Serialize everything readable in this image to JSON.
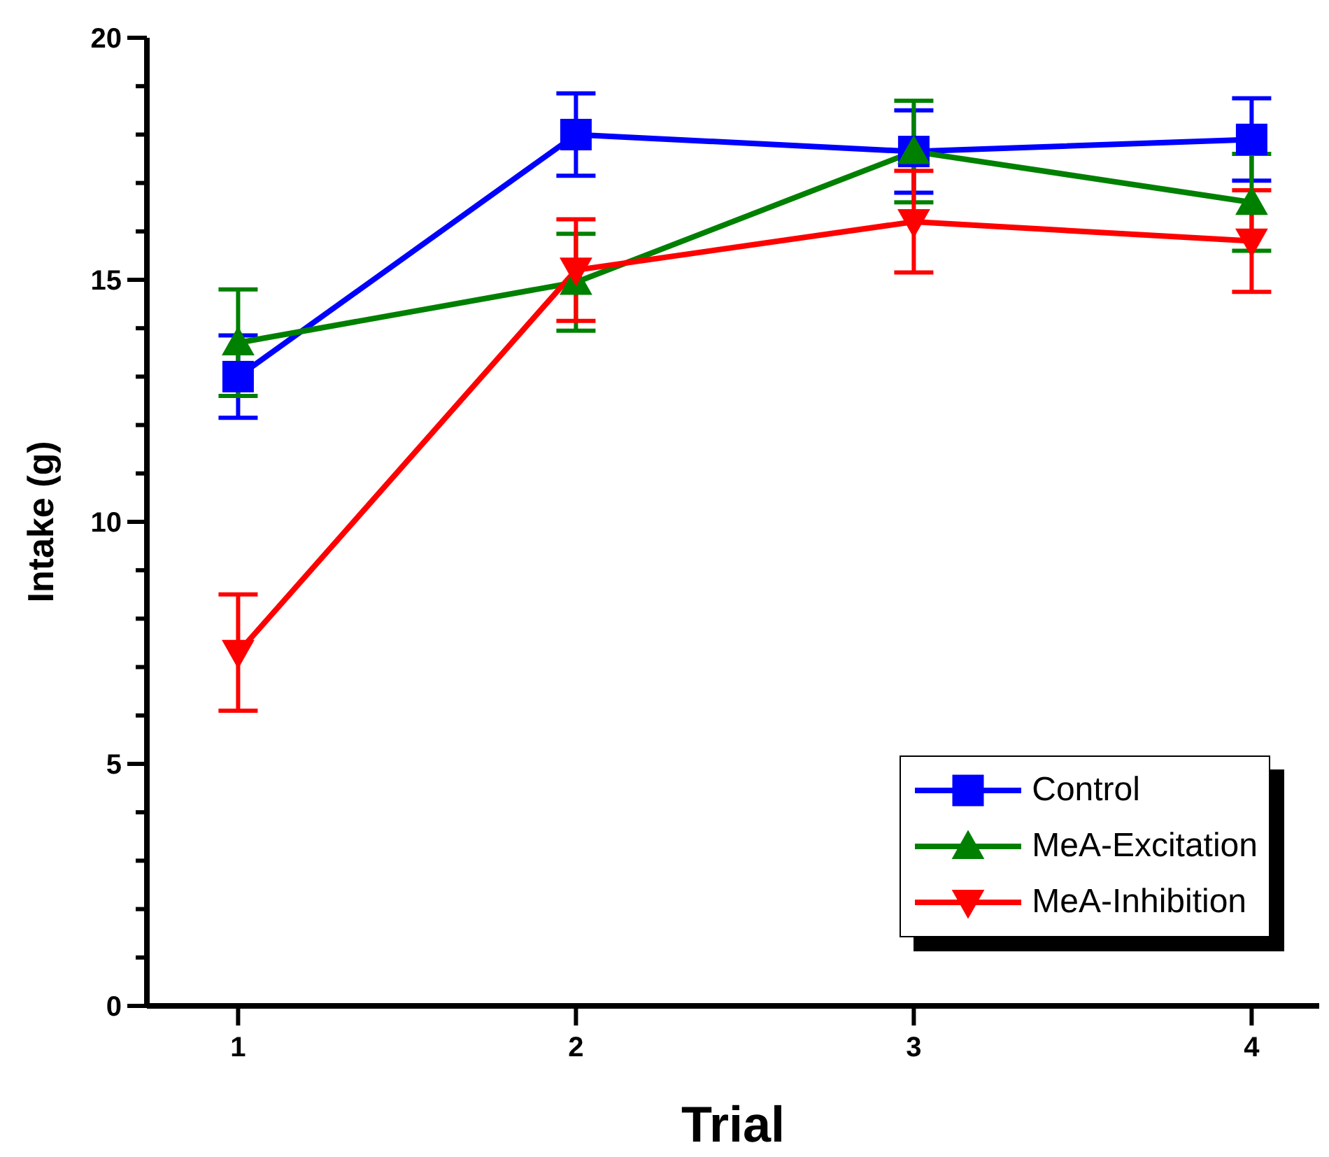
{
  "chart_data": {
    "type": "line",
    "xlabel": "Trial",
    "ylabel": "Intake (g)",
    "x": [
      1,
      2,
      3,
      4
    ],
    "xlim": [
      0.73,
      4.2
    ],
    "xticks": [
      1,
      2,
      3,
      4
    ],
    "ylim": [
      0,
      20
    ],
    "yticks": [
      0,
      {
        "value": 1,
        "label": null
      },
      {
        "value": 2,
        "label": null
      },
      {
        "value": 3,
        "label": null
      },
      {
        "value": 4,
        "label": null
      },
      5,
      {
        "value": 6,
        "label": null
      },
      {
        "value": 7,
        "label": null
      },
      {
        "value": 8,
        "label": null
      },
      {
        "value": 9,
        "label": null
      },
      10,
      {
        "value": 11,
        "label": null
      },
      {
        "value": 12,
        "label": null
      },
      {
        "value": 13,
        "label": null
      },
      {
        "value": 14,
        "label": null
      },
      15,
      {
        "value": 16,
        "label": null
      },
      {
        "value": 17,
        "label": null
      },
      {
        "value": 18,
        "label": null
      },
      {
        "value": 19,
        "label": null
      },
      20
    ],
    "legend": "bottom right",
    "line_style": "solid",
    "series": [
      {
        "name": "Control",
        "color": "#0000ff",
        "marker": "square",
        "values": [
          13.0,
          18.0,
          17.65,
          17.9
        ],
        "errors": [
          0.85,
          0.85,
          0.85,
          0.85
        ]
      },
      {
        "name": "MeA-Excitation",
        "color": "#008000",
        "marker": "triangle",
        "values": [
          13.7,
          14.95,
          17.65,
          16.6
        ],
        "errors": [
          1.1,
          1.0,
          1.05,
          1.0
        ]
      },
      {
        "name": "MeA-Inhibition",
        "color": "#ff0000",
        "marker": "triangle-down",
        "values": [
          7.3,
          15.2,
          16.2,
          15.8
        ],
        "errors": [
          1.2,
          1.05,
          1.05,
          1.05
        ]
      }
    ]
  }
}
